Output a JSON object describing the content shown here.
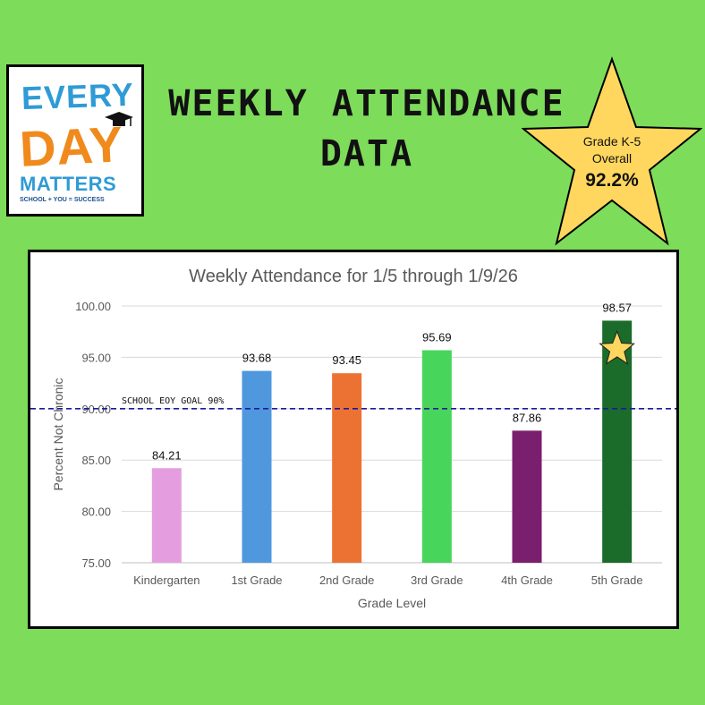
{
  "logo": {
    "line1": "EVERY",
    "line2": "DAY",
    "line3": "MATTERS",
    "tagline": "SCHOOL + YOU = SUCCESS"
  },
  "headline": {
    "line1": "WEEKLY ATTENDANCE",
    "line2": "DATA"
  },
  "badge": {
    "line1": "Grade K-5",
    "line2": "Overall",
    "value": "92.2%",
    "color": "#ffd75e"
  },
  "chart_data": {
    "type": "bar",
    "title": "Weekly Attendance for 1/5 through 1/9/26",
    "xlabel": "Grade Level",
    "ylabel": "Percent Not Chronic",
    "categories": [
      "Kindergarten",
      "1st Grade",
      "2nd Grade",
      "3rd Grade",
      "4th Grade",
      "5th Grade"
    ],
    "values": [
      84.21,
      93.68,
      93.45,
      95.69,
      87.86,
      98.57
    ],
    "value_labels": [
      "84.21",
      "93.68",
      "93.45",
      "95.69",
      "87.86",
      "98.57"
    ],
    "colors": [
      "#e49ee0",
      "#4f98de",
      "#ec7233",
      "#48d55b",
      "#7a1f6e",
      "#1b6b2b"
    ],
    "ylim": [
      75,
      100
    ],
    "yticks": [
      "75.00",
      "80.00",
      "85.00",
      "90.00",
      "95.00",
      "100.00"
    ],
    "ytick_values": [
      75,
      80,
      85,
      90,
      95,
      100
    ],
    "grid": true,
    "goal_line": {
      "value": 90,
      "label": "SCHOOL EOY GOAL 90%",
      "color": "#1a1aa0"
    },
    "star_marker_category": "5th Grade"
  }
}
